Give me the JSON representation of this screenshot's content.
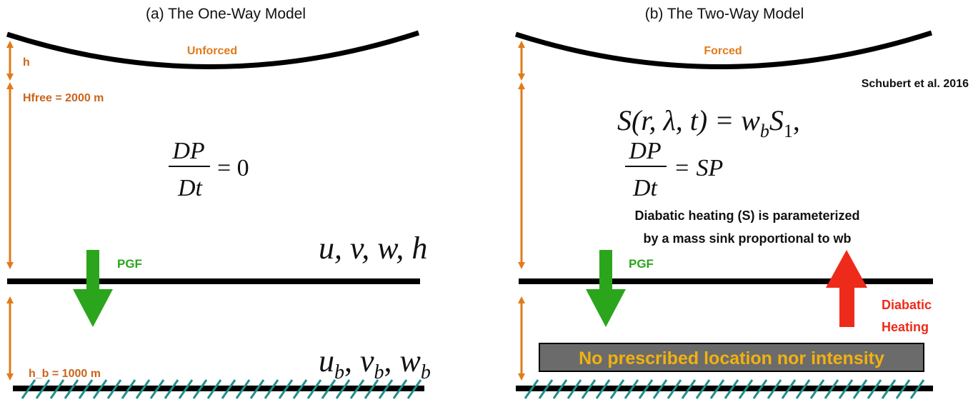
{
  "panel_a": {
    "title": "(a) The One-Way Model",
    "top_label": "Unforced",
    "h_label": "h",
    "hfree_label": "Hfree = 2000 m",
    "hb_label": "h_b = 1000 m",
    "pgf_label": "PGF",
    "eq_num": "DP",
    "eq_den": "Dt",
    "eq_rhs": "= 0",
    "vars_upper": "u, v, w, h",
    "vars_lower_u": "u",
    "vars_lower_v": "v",
    "vars_lower_w": "w",
    "vars_lower_sub": "b"
  },
  "panel_b": {
    "title": "(b) The Two-Way Model",
    "top_label": "Forced",
    "citation": "Schubert et al. 2016",
    "eq1_lhs": "S(r, λ, t) = w",
    "eq1_sub": "b",
    "eq1_s": "S",
    "eq1_s_sub": "1",
    "eq1_end": ",",
    "eq2_num": "DP",
    "eq2_den": "Dt",
    "eq2_rhs": "= SP",
    "note_line1": "Diabatic heating (S) is parameterized",
    "note_line2": "by a mass sink proportional to wb",
    "pgf_label": "PGF",
    "heating_line1": "Diabatic",
    "heating_line2": "Heating",
    "banner": "No prescribed location nor intensity"
  },
  "colors": {
    "orange": "#e07b1a",
    "green": "#2aa51c",
    "red": "#ee2a1a",
    "teal": "#1f8f8a",
    "banner_bg": "#6b6b6b",
    "banner_text": "#f2b10f"
  }
}
